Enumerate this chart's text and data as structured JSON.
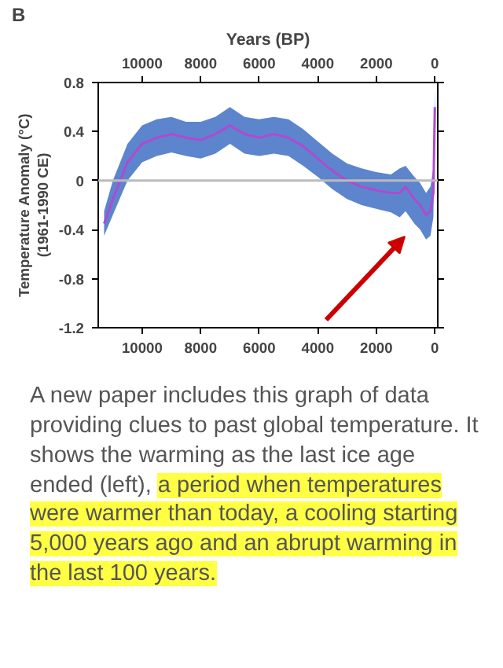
{
  "chart_data": {
    "type": "line",
    "x2label": "Years (BP)",
    "ylabel": "Temperature Anomaly (°C)\n(1961-1990 CE)",
    "annotations": [
      "B",
      "A new paper includes this graph of data providing clues to past global temperature. It shows the warming as the last ice age ended (left),",
      "a period when temperatures were warmer than today, a cooling starting 5,000 years ago and an abrupt warming in the last 100 years."
    ],
    "xlim": [
      11500,
      -100
    ],
    "xticks": [
      10000,
      8000,
      6000,
      4000,
      2000,
      0
    ],
    "x2lim": [
      11500,
      -100
    ],
    "x2ticks": [
      10000,
      8000,
      6000,
      4000,
      2000,
      0
    ],
    "ylim": [
      -1.2,
      0.8
    ],
    "yticks": [
      -1.2,
      -0.8,
      -0.4,
      0,
      0.4,
      0.8
    ],
    "x": [
      11300,
      11000,
      10500,
      10000,
      9500,
      9000,
      8500,
      8000,
      7500,
      7000,
      6500,
      6000,
      5500,
      5000,
      4500,
      4000,
      3500,
      3000,
      2500,
      2000,
      1500,
      1200,
      1000,
      700,
      500,
      300,
      150,
      50,
      0
    ],
    "series": [
      {
        "color": "#b04ad0",
        "values": [
          -0.35,
          -0.15,
          0.15,
          0.3,
          0.35,
          0.38,
          0.35,
          0.33,
          0.38,
          0.45,
          0.38,
          0.35,
          0.38,
          0.35,
          0.28,
          0.18,
          0.08,
          0.0,
          -0.05,
          -0.08,
          -0.1,
          -0.1,
          -0.05,
          -0.15,
          -0.2,
          -0.28,
          -0.25,
          -0.1,
          0.6
        ],
        "lower": [
          -0.45,
          -0.28,
          0.0,
          0.15,
          0.2,
          0.23,
          0.2,
          0.18,
          0.22,
          0.3,
          0.22,
          0.2,
          0.22,
          0.2,
          0.12,
          0.03,
          -0.07,
          -0.15,
          -0.2,
          -0.23,
          -0.26,
          -0.3,
          -0.25,
          -0.35,
          -0.4,
          -0.48,
          -0.45,
          -0.3,
          0.4
        ],
        "upper": [
          -0.25,
          0.0,
          0.3,
          0.45,
          0.5,
          0.52,
          0.48,
          0.48,
          0.52,
          0.6,
          0.52,
          0.5,
          0.52,
          0.5,
          0.42,
          0.32,
          0.22,
          0.14,
          0.1,
          0.07,
          0.05,
          0.1,
          0.12,
          0.03,
          -0.02,
          -0.1,
          -0.05,
          0.1,
          0.75
        ]
      }
    ],
    "ref_lines": [
      {
        "axis": "y",
        "value": 0,
        "color": "#bbbbbb"
      }
    ],
    "grid": false
  }
}
